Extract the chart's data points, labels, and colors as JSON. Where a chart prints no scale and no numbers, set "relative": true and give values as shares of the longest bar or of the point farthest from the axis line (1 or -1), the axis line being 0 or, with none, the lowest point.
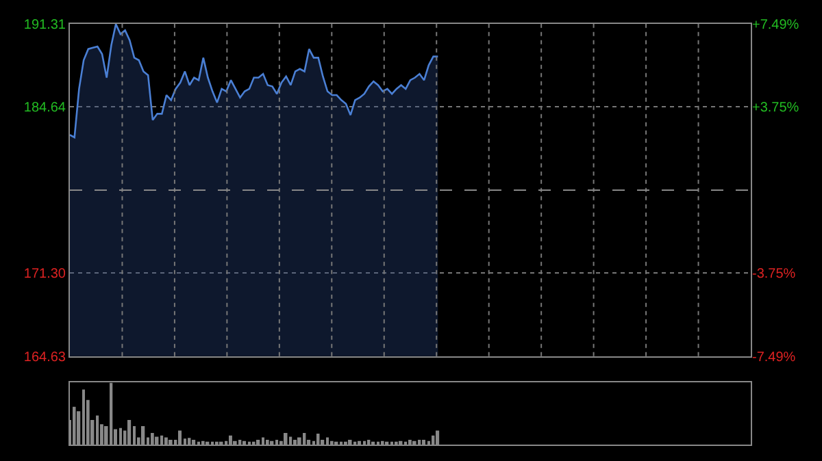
{
  "chart_data": [
    {
      "type": "area",
      "categories": [
        null,
        null,
        null,
        null,
        null,
        null,
        null,
        null,
        null,
        null,
        null,
        null,
        null,
        null,
        null,
        null,
        null,
        null,
        null,
        null,
        null,
        null,
        null,
        null,
        null,
        null,
        null,
        null,
        null,
        null,
        null,
        null,
        null,
        null,
        null,
        null,
        null,
        null,
        null,
        null,
        null,
        null,
        null,
        null,
        null,
        null,
        null,
        null,
        null,
        null,
        null,
        null,
        null,
        null,
        null,
        null,
        null,
        null,
        null,
        null,
        null,
        null,
        null,
        null,
        null,
        null,
        null,
        null,
        null,
        null,
        null,
        null,
        null,
        null,
        null,
        null,
        null,
        null,
        null,
        null,
        null,
        null,
        null,
        null,
        null,
        null,
        null,
        null,
        null,
        null,
        null,
        null,
        null,
        null,
        null,
        null,
        null,
        null,
        null,
        null,
        null,
        null,
        null,
        null,
        null,
        null,
        null,
        null,
        null,
        null,
        null,
        null,
        null,
        null,
        null,
        null,
        null,
        null,
        null,
        null,
        null,
        null,
        null,
        null,
        null,
        null,
        null,
        null,
        null,
        null,
        null,
        null,
        null,
        null,
        null,
        null,
        null,
        null,
        null,
        null,
        null,
        null,
        null,
        null,
        null,
        null,
        null,
        null,
        null
      ],
      "series": [
        {
          "color": "#4a7fd4",
          "values": [
            182.4,
            182.2,
            186.1,
            188.4,
            189.3,
            189.4,
            189.5,
            188.9,
            187.0,
            189.6,
            191.3,
            190.5,
            190.8,
            190.0,
            188.6,
            188.4,
            187.5,
            187.2,
            183.6,
            184.1,
            184.1,
            185.6,
            185.2,
            186.1,
            186.6,
            187.5,
            186.4,
            187.0,
            186.8,
            188.6,
            187.0,
            185.9,
            185.0,
            186.1,
            185.9,
            186.8,
            186.1,
            185.4,
            185.9,
            186.1,
            187.0,
            187.0,
            187.3,
            186.4,
            186.3,
            185.7,
            186.6,
            187.1,
            186.4,
            187.5,
            187.7,
            187.5,
            189.3,
            188.6,
            188.6,
            187.1,
            185.9,
            185.6,
            185.6,
            185.2,
            184.9,
            184.0,
            185.2,
            185.4,
            185.7,
            186.3,
            186.7,
            186.4,
            185.9,
            186.1,
            185.7,
            186.1,
            186.4,
            186.1,
            186.8,
            187.0,
            187.3,
            186.8,
            188.0,
            188.7,
            188.7,
            null,
            null,
            null,
            null,
            null,
            null,
            null,
            null,
            null,
            null,
            null,
            null,
            null,
            null,
            null,
            null,
            null,
            null,
            null,
            null,
            null,
            null,
            null,
            null,
            null,
            null,
            null,
            null,
            null,
            null,
            null,
            null,
            null,
            null,
            null,
            null,
            null,
            null,
            null,
            null,
            null,
            null,
            null,
            null,
            null,
            null,
            null,
            null,
            null,
            null,
            null,
            null,
            null,
            null,
            null,
            null,
            null,
            null,
            null,
            null,
            null,
            null,
            null,
            null,
            null,
            null,
            null,
            null
          ]
        }
      ],
      "ylim": [
        164.63,
        191.31
      ],
      "yticks": [
        191.31,
        184.64,
        {
          "value": 171.3,
          "label": "171.30"
        },
        164.63
      ],
      "y2lim": [
        -7.49,
        7.49
      ],
      "y2ticks": [
        {
          "value": 7.49,
          "label": "+7.49%"
        },
        {
          "value": 3.75,
          "label": "+3.75%"
        },
        {
          "value": -3.75,
          "label": "-3.75%"
        },
        {
          "value": -7.49,
          "label": "-7.49%"
        }
      ],
      "ref_lines": [
        {
          "axis": "y",
          "value": 177.97,
          "label": null,
          "color": "#888888",
          "line_style": "dashed"
        }
      ],
      "grid": true
    },
    {
      "type": "bar",
      "relative": true,
      "categories": [
        null,
        null,
        null,
        null,
        null,
        null,
        null,
        null,
        null,
        null,
        null,
        null,
        null,
        null,
        null,
        null,
        null,
        null,
        null,
        null,
        null,
        null,
        null,
        null,
        null,
        null,
        null,
        null,
        null,
        null,
        null,
        null,
        null,
        null,
        null,
        null,
        null,
        null,
        null,
        null,
        null,
        null,
        null,
        null,
        null,
        null,
        null,
        null,
        null,
        null,
        null,
        null,
        null,
        null,
        null,
        null,
        null,
        null,
        null,
        null,
        null,
        null,
        null,
        null,
        null,
        null,
        null,
        null,
        null,
        null,
        null,
        null,
        null,
        null,
        null,
        null,
        null,
        null,
        null,
        null,
        null,
        null,
        null,
        null,
        null,
        null,
        null,
        null,
        null,
        null,
        null,
        null,
        null,
        null,
        null,
        null,
        null,
        null,
        null,
        null,
        null,
        null,
        null,
        null,
        null,
        null,
        null,
        null,
        null,
        null,
        null,
        null,
        null,
        null,
        null,
        null,
        null,
        null,
        null,
        null,
        null,
        null,
        null,
        null,
        null,
        null,
        null,
        null,
        null,
        null,
        null,
        null,
        null,
        null,
        null,
        null,
        null,
        null,
        null,
        null,
        null,
        null,
        null,
        null,
        null,
        null,
        null,
        null,
        null
      ],
      "series": [
        {
          "color": "#888888",
          "values": [
            0.4,
            0.61,
            0.54,
            0.89,
            0.72,
            0.4,
            0.47,
            0.33,
            0.3,
            1.0,
            0.25,
            0.27,
            0.23,
            0.4,
            0.3,
            0.12,
            0.3,
            0.12,
            0.19,
            0.13,
            0.15,
            0.12,
            0.08,
            0.08,
            0.23,
            0.1,
            0.11,
            0.08,
            0.05,
            0.06,
            0.05,
            0.05,
            0.05,
            0.05,
            0.06,
            0.15,
            0.06,
            0.08,
            0.06,
            0.05,
            0.05,
            0.08,
            0.12,
            0.08,
            0.06,
            0.08,
            0.06,
            0.19,
            0.13,
            0.08,
            0.12,
            0.19,
            0.08,
            0.06,
            0.18,
            0.08,
            0.12,
            0.06,
            0.05,
            0.05,
            0.05,
            0.08,
            0.05,
            0.06,
            0.06,
            0.08,
            0.05,
            0.05,
            0.06,
            0.05,
            0.05,
            0.05,
            0.06,
            0.05,
            0.08,
            0.06,
            0.08,
            0.08,
            0.06,
            0.15,
            0.23,
            null,
            null,
            null,
            null,
            null,
            null,
            null,
            null,
            null,
            null,
            null,
            null,
            null,
            null,
            null,
            null,
            null,
            null,
            null,
            null,
            null,
            null,
            null,
            null,
            null,
            null,
            null,
            null,
            null,
            null,
            null,
            null,
            null,
            null,
            null,
            null,
            null,
            null,
            null,
            null,
            null,
            null,
            null,
            null,
            null,
            null,
            null,
            null,
            null,
            null,
            null,
            null,
            null,
            null,
            null,
            null,
            null,
            null,
            null,
            null,
            null,
            null,
            null,
            null,
            null,
            null,
            null,
            null
          ]
        }
      ],
      "grid": false
    }
  ]
}
